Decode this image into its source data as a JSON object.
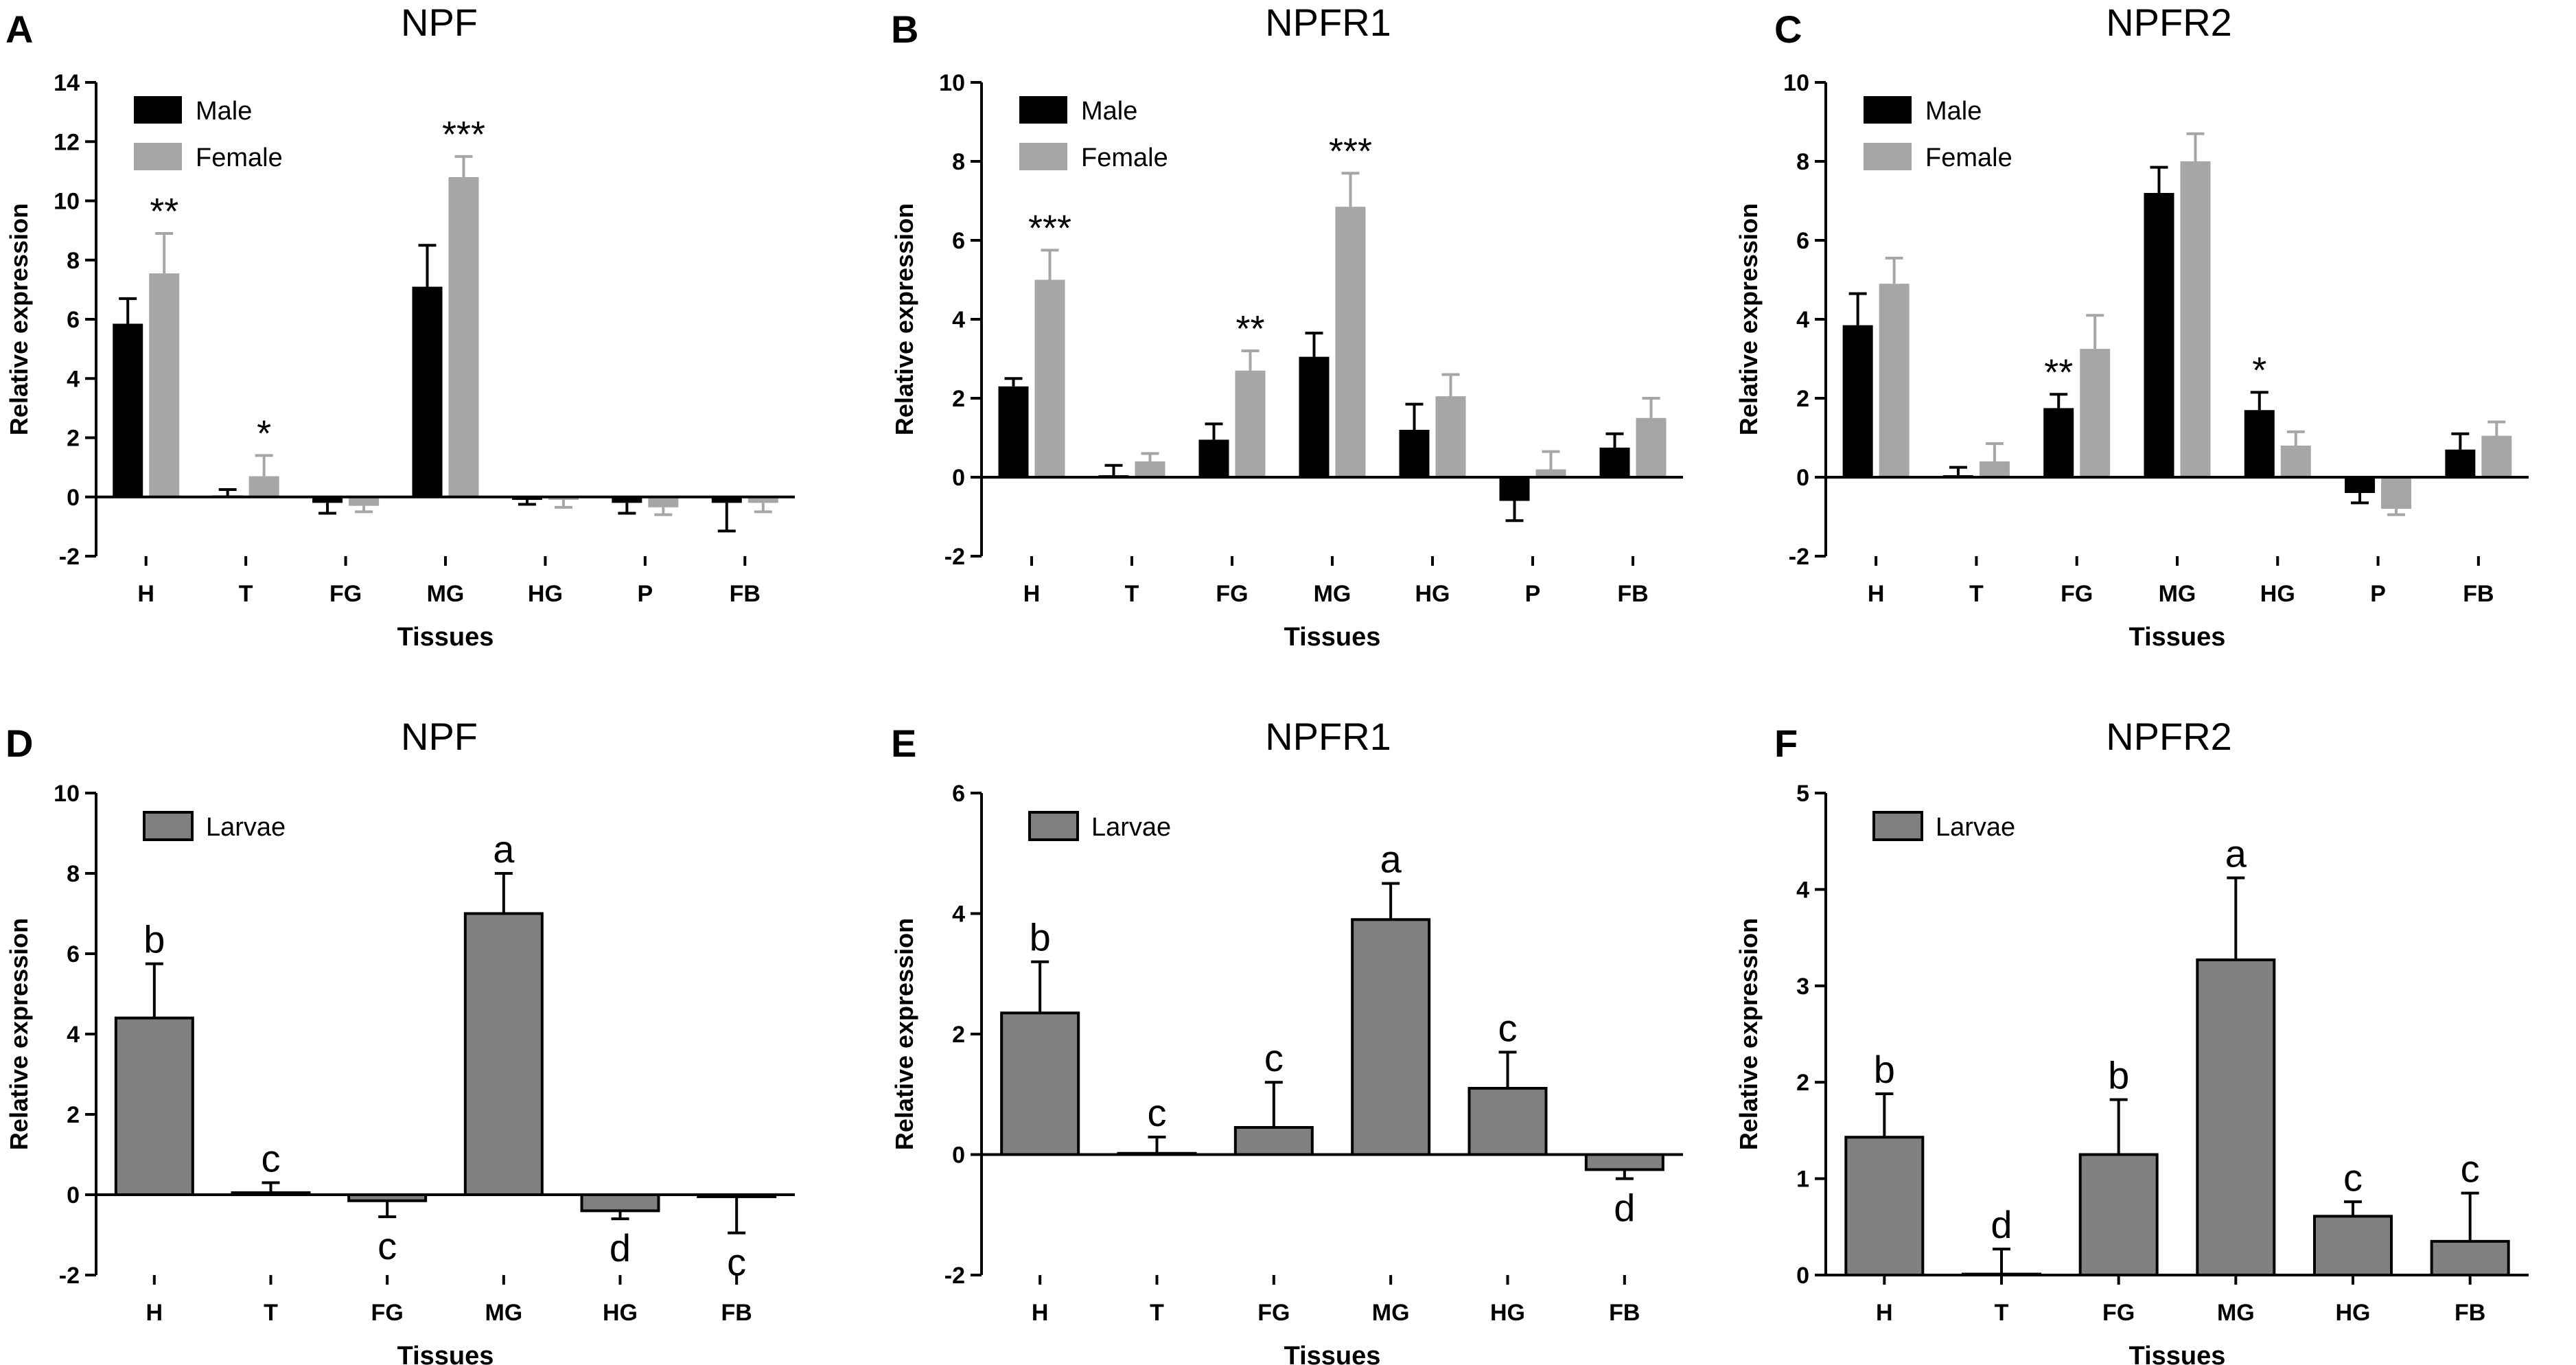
{
  "chart_data": [
    {
      "letter": "A",
      "type": "bar",
      "title": "NPF",
      "xlabel": "Tissues",
      "ylabel": "Relative expression",
      "ylim": [
        -2,
        14
      ],
      "yticks": [
        -2,
        0,
        2,
        4,
        6,
        8,
        10,
        12,
        14
      ],
      "categories": [
        "H",
        "T",
        "FG",
        "MG",
        "HG",
        "P",
        "FB"
      ],
      "legend": "top-left",
      "series": [
        {
          "name": "Male",
          "color": "#000000",
          "values": [
            5.85,
            0.05,
            -0.2,
            7.1,
            -0.1,
            -0.2,
            -0.2
          ],
          "errors": [
            0.85,
            0.2,
            0.35,
            1.4,
            0.15,
            0.35,
            0.95
          ]
        },
        {
          "name": "Female",
          "color": "#a6a6a6",
          "values": [
            7.55,
            0.7,
            -0.3,
            10.8,
            -0.1,
            -0.35,
            -0.2
          ],
          "errors": [
            1.35,
            0.7,
            0.2,
            0.7,
            0.25,
            0.25,
            0.3
          ]
        }
      ],
      "annotations": [
        {
          "cat": 0,
          "series": 1,
          "text": "**"
        },
        {
          "cat": 1,
          "series": 1,
          "text": "*"
        },
        {
          "cat": 3,
          "series": 1,
          "text": "***"
        }
      ]
    },
    {
      "letter": "B",
      "type": "bar",
      "title": "NPFR1",
      "xlabel": "Tissues",
      "ylabel": "Relative expression",
      "ylim": [
        -2,
        10
      ],
      "yticks": [
        -2,
        0,
        2,
        4,
        6,
        8,
        10
      ],
      "categories": [
        "H",
        "T",
        "FG",
        "MG",
        "HG",
        "P",
        "FB"
      ],
      "legend": "top-left",
      "series": [
        {
          "name": "Male",
          "color": "#000000",
          "values": [
            2.3,
            0.05,
            0.95,
            3.05,
            1.2,
            -0.6,
            0.75
          ],
          "errors": [
            0.2,
            0.25,
            0.4,
            0.6,
            0.65,
            0.5,
            0.35
          ]
        },
        {
          "name": "Female",
          "color": "#a6a6a6",
          "values": [
            5.0,
            0.4,
            2.7,
            6.85,
            2.05,
            0.2,
            1.5
          ],
          "errors": [
            0.75,
            0.2,
            0.5,
            0.85,
            0.55,
            0.45,
            0.5
          ]
        }
      ],
      "annotations": [
        {
          "cat": 0,
          "series": 1,
          "text": "***"
        },
        {
          "cat": 2,
          "series": 1,
          "text": "**"
        },
        {
          "cat": 3,
          "series": 1,
          "text": "***"
        }
      ]
    },
    {
      "letter": "C",
      "type": "bar",
      "title": "NPFR2",
      "xlabel": "Tissues",
      "ylabel": "Relative expression",
      "ylim": [
        -2,
        10
      ],
      "yticks": [
        -2,
        0,
        2,
        4,
        6,
        8,
        10
      ],
      "categories": [
        "H",
        "T",
        "FG",
        "MG",
        "HG",
        "P",
        "FB"
      ],
      "legend": "top-left",
      "series": [
        {
          "name": "Male",
          "color": "#000000",
          "values": [
            3.85,
            0.05,
            1.75,
            7.2,
            1.7,
            -0.4,
            0.7
          ],
          "errors": [
            0.8,
            0.2,
            0.35,
            0.65,
            0.45,
            0.25,
            0.4
          ]
        },
        {
          "name": "Female",
          "color": "#a6a6a6",
          "values": [
            4.9,
            0.4,
            3.25,
            8.0,
            0.8,
            -0.8,
            1.05
          ],
          "errors": [
            0.65,
            0.45,
            0.85,
            0.7,
            0.35,
            0.15,
            0.35
          ]
        }
      ],
      "annotations": [
        {
          "cat": 2,
          "series": 0,
          "text": "**"
        },
        {
          "cat": 4,
          "series": 0,
          "text": "*"
        }
      ]
    },
    {
      "letter": "D",
      "type": "bar",
      "title": "NPF",
      "xlabel": "Tissues",
      "ylabel": "Relative expression",
      "ylim": [
        -2,
        10
      ],
      "yticks": [
        -2,
        0,
        2,
        4,
        6,
        8,
        10
      ],
      "categories": [
        "H",
        "T",
        "FG",
        "MG",
        "HG",
        "FB"
      ],
      "legend": "top-left",
      "series": [
        {
          "name": "Larvae",
          "color": "#808080",
          "values": [
            4.4,
            0.05,
            -0.15,
            7.0,
            -0.4,
            -0.05
          ],
          "errors": [
            1.35,
            0.25,
            0.4,
            1.0,
            0.2,
            0.9
          ]
        }
      ],
      "letters": [
        "b",
        "c",
        "c",
        "a",
        "d",
        "c"
      ]
    },
    {
      "letter": "E",
      "type": "bar",
      "title": "NPFR1",
      "xlabel": "Tissues",
      "ylabel": "Relative expression",
      "ylim": [
        -2,
        6
      ],
      "yticks": [
        -2,
        0,
        2,
        4,
        6
      ],
      "categories": [
        "H",
        "T",
        "FG",
        "MG",
        "HG",
        "FB"
      ],
      "legend": "top-left",
      "series": [
        {
          "name": "Larvae",
          "color": "#808080",
          "values": [
            2.35,
            0.02,
            0.45,
            3.9,
            1.1,
            -0.25
          ],
          "errors": [
            0.85,
            0.27,
            0.75,
            0.6,
            0.6,
            0.15
          ]
        }
      ],
      "letters": [
        "b",
        "c",
        "c",
        "a",
        "c",
        "d"
      ]
    },
    {
      "letter": "F",
      "type": "bar",
      "title": "NPFR2",
      "xlabel": "Tissues",
      "ylabel": "Relative expression",
      "ylim": [
        0,
        5
      ],
      "yticks": [
        0,
        1,
        2,
        3,
        4,
        5
      ],
      "categories": [
        "H",
        "T",
        "FG",
        "MG",
        "HG",
        "FB"
      ],
      "legend": "top-left",
      "series": [
        {
          "name": "Larvae",
          "color": "#808080",
          "values": [
            1.43,
            0.01,
            1.25,
            3.27,
            0.61,
            0.35
          ],
          "errors": [
            0.45,
            0.26,
            0.57,
            0.85,
            0.15,
            0.5
          ]
        }
      ],
      "letters": [
        "b",
        "d",
        "b",
        "a",
        "c",
        "c"
      ]
    }
  ]
}
